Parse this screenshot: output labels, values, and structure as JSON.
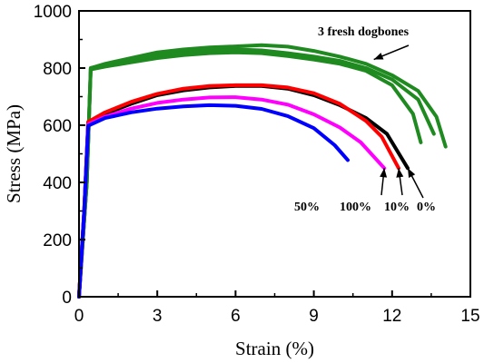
{
  "chart_data": {
    "type": "line",
    "xlabel": "Strain (%)",
    "ylabel": "Stress (MPa)",
    "xlim": [
      0,
      15
    ],
    "ylim": [
      0,
      1000
    ],
    "xticks": [
      0,
      3,
      6,
      9,
      12,
      15
    ],
    "yticks": [
      0,
      200,
      400,
      600,
      800,
      1000
    ],
    "grid": false,
    "series": [
      {
        "color": "#1f8a1f",
        "points": [
          [
            0,
            0
          ],
          [
            0.3,
            400
          ],
          [
            0.45,
            795
          ],
          [
            1,
            805
          ],
          [
            2,
            820
          ],
          [
            3,
            835
          ],
          [
            4,
            845
          ],
          [
            5,
            852
          ],
          [
            6,
            855
          ],
          [
            7,
            852
          ],
          [
            8,
            842
          ],
          [
            9,
            830
          ],
          [
            10,
            815
          ],
          [
            11,
            790
          ],
          [
            12,
            740
          ],
          [
            12.8,
            640
          ],
          [
            13.1,
            540
          ]
        ]
      },
      {
        "color": "#1f8a1f",
        "points": [
          [
            0,
            0
          ],
          [
            0.3,
            400
          ],
          [
            0.45,
            800
          ],
          [
            1,
            812
          ],
          [
            2,
            830
          ],
          [
            3,
            845
          ],
          [
            4,
            855
          ],
          [
            5,
            862
          ],
          [
            6,
            865
          ],
          [
            7,
            862
          ],
          [
            8,
            852
          ],
          [
            9,
            840
          ],
          [
            10,
            825
          ],
          [
            11,
            800
          ],
          [
            12,
            760
          ],
          [
            13,
            690
          ],
          [
            13.6,
            570
          ]
        ]
      },
      {
        "color": "#1f8a1f",
        "points": [
          [
            0,
            0
          ],
          [
            0.3,
            400
          ],
          [
            0.45,
            800
          ],
          [
            1,
            815
          ],
          [
            2,
            835
          ],
          [
            3,
            855
          ],
          [
            4,
            865
          ],
          [
            5,
            872
          ],
          [
            6,
            876
          ],
          [
            7,
            880
          ],
          [
            8,
            875
          ],
          [
            9,
            860
          ],
          [
            10,
            840
          ],
          [
            11,
            815
          ],
          [
            12,
            775
          ],
          [
            13,
            720
          ],
          [
            13.7,
            630
          ],
          [
            14.05,
            525
          ]
        ]
      },
      {
        "name": "0%",
        "color": "#000000",
        "points": [
          [
            0,
            0
          ],
          [
            0.2,
            300
          ],
          [
            0.35,
            610
          ],
          [
            1,
            640
          ],
          [
            2,
            675
          ],
          [
            3,
            705
          ],
          [
            4,
            722
          ],
          [
            5,
            732
          ],
          [
            6,
            737
          ],
          [
            7,
            737
          ],
          [
            8,
            728
          ],
          [
            9,
            705
          ],
          [
            10,
            670
          ],
          [
            11,
            625
          ],
          [
            11.8,
            570
          ],
          [
            12.6,
            450
          ]
        ]
      },
      {
        "name": "10%",
        "color": "#ff0000",
        "points": [
          [
            0,
            0
          ],
          [
            0.2,
            300
          ],
          [
            0.35,
            612
          ],
          [
            1,
            645
          ],
          [
            2,
            682
          ],
          [
            3,
            710
          ],
          [
            4,
            728
          ],
          [
            5,
            737
          ],
          [
            6,
            740
          ],
          [
            7,
            740
          ],
          [
            8,
            732
          ],
          [
            9,
            712
          ],
          [
            10,
            675
          ],
          [
            11,
            615
          ],
          [
            11.6,
            560
          ],
          [
            12.25,
            450
          ]
        ]
      },
      {
        "name": "100%",
        "color": "#ff00ff",
        "points": [
          [
            0,
            0
          ],
          [
            0.2,
            300
          ],
          [
            0.35,
            603
          ],
          [
            1,
            630
          ],
          [
            2,
            658
          ],
          [
            3,
            678
          ],
          [
            4,
            690
          ],
          [
            5,
            697
          ],
          [
            6,
            698
          ],
          [
            7,
            690
          ],
          [
            8,
            672
          ],
          [
            9,
            638
          ],
          [
            10,
            592
          ],
          [
            10.8,
            540
          ],
          [
            11.7,
            450
          ]
        ]
      },
      {
        "name": "50%",
        "color": "#0000ff",
        "points": [
          [
            0,
            0
          ],
          [
            0.2,
            300
          ],
          [
            0.35,
            598
          ],
          [
            1,
            625
          ],
          [
            2,
            645
          ],
          [
            3,
            658
          ],
          [
            4,
            666
          ],
          [
            5,
            670
          ],
          [
            6,
            668
          ],
          [
            7,
            657
          ],
          [
            8,
            632
          ],
          [
            9,
            590
          ],
          [
            9.8,
            530
          ],
          [
            10.3,
            478
          ]
        ]
      }
    ],
    "annotations": [
      {
        "text": "3 fresh dogbones",
        "target": [
          11.3,
          830
        ]
      },
      {
        "text": "50%",
        "target": null
      },
      {
        "text": "100%",
        "target": [
          11.7,
          450
        ]
      },
      {
        "text": "10%",
        "target": [
          12.25,
          450
        ]
      },
      {
        "text": "0%",
        "target": [
          12.6,
          450
        ]
      }
    ]
  }
}
